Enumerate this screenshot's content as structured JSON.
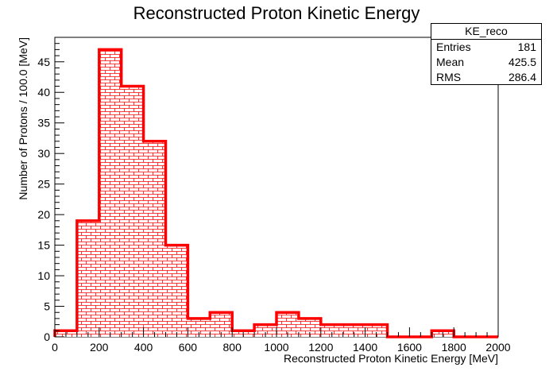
{
  "chart_data": {
    "type": "bar",
    "title": "Reconstructed Proton Kinetic Energy",
    "xlabel": "Reconstructed Proton Kinetic Energy [MeV]",
    "ylabel": "Number of Protons / 100.0 [MeV]",
    "xlim": [
      0,
      2000
    ],
    "ylim": [
      0,
      49
    ],
    "bin_width": 100,
    "bin_edges": [
      0,
      100,
      200,
      300,
      400,
      500,
      600,
      700,
      800,
      900,
      1000,
      1100,
      1200,
      1300,
      1400,
      1500,
      1600,
      1700,
      1800,
      1900,
      2000
    ],
    "values": [
      1,
      19,
      47,
      41,
      32,
      15,
      3,
      4,
      1,
      2,
      4,
      3,
      2,
      2,
      2,
      0,
      0,
      1,
      0,
      0
    ],
    "x_ticks": [
      "0",
      "200",
      "400",
      "600",
      "800",
      "1000",
      "1200",
      "1400",
      "1600",
      "1800",
      "2000"
    ],
    "y_ticks": [
      "0",
      "5",
      "10",
      "15",
      "20",
      "25",
      "30",
      "35",
      "40",
      "45"
    ],
    "line_color": "#ff0000",
    "fill_pattern": "brick",
    "grid": false,
    "stats_box": {
      "name": "KE_reco",
      "entries_label": "Entries",
      "entries": "181",
      "mean_label": "Mean",
      "mean": "425.5",
      "rms_label": "RMS",
      "rms": "286.4"
    }
  }
}
